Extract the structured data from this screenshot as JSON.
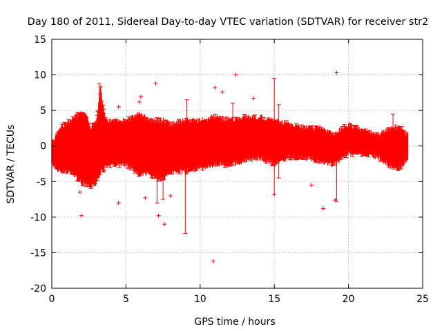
{
  "chart_data": {
    "type": "scatter",
    "title": "Day 180 of 2011, Sidereal Day-to-day VTEC variation (SDTVAR) for receiver str2",
    "xlabel": "GPS time / hours",
    "ylabel": "SDTVAR / TECUs",
    "xlim": [
      0,
      25
    ],
    "ylim": [
      -20,
      15
    ],
    "x_ticks": [
      0,
      5,
      10,
      15,
      20,
      25
    ],
    "y_ticks": [
      -20,
      -15,
      -10,
      -5,
      0,
      5,
      10,
      15
    ],
    "grid": true,
    "grid_style": "dotted",
    "marker": "+",
    "series_color": "#ff0000",
    "band": [
      {
        "x": 0.0,
        "lo": -3.0,
        "hi": 1.0
      },
      {
        "x": 0.3,
        "lo": -3.5,
        "hi": 2.0
      },
      {
        "x": 0.6,
        "lo": -4.0,
        "hi": 3.0
      },
      {
        "x": 1.0,
        "lo": -4.0,
        "hi": 3.5
      },
      {
        "x": 1.5,
        "lo": -4.5,
        "hi": 4.5
      },
      {
        "x": 2.0,
        "lo": -5.5,
        "hi": 5.0
      },
      {
        "x": 2.3,
        "lo": -6.0,
        "hi": 5.0
      },
      {
        "x": 2.6,
        "lo": -6.0,
        "hi": 3.0
      },
      {
        "x": 3.0,
        "lo": -5.5,
        "hi": 4.0
      },
      {
        "x": 3.3,
        "lo": -4.0,
        "hi": 8.5
      },
      {
        "x": 3.6,
        "lo": -3.5,
        "hi": 4.0
      },
      {
        "x": 4.0,
        "lo": -3.0,
        "hi": 4.0
      },
      {
        "x": 5.0,
        "lo": -3.0,
        "hi": 4.0
      },
      {
        "x": 6.0,
        "lo": -4.5,
        "hi": 5.0
      },
      {
        "x": 6.5,
        "lo": -4.0,
        "hi": 4.0
      },
      {
        "x": 7.0,
        "lo": -5.0,
        "hi": 4.0
      },
      {
        "x": 7.5,
        "lo": -5.0,
        "hi": 4.0
      },
      {
        "x": 8.0,
        "lo": -4.0,
        "hi": 3.5
      },
      {
        "x": 9.0,
        "lo": -4.0,
        "hi": 4.0
      },
      {
        "x": 10.0,
        "lo": -3.5,
        "hi": 4.0
      },
      {
        "x": 11.0,
        "lo": -3.0,
        "hi": 4.5
      },
      {
        "x": 12.0,
        "lo": -3.0,
        "hi": 4.0
      },
      {
        "x": 13.0,
        "lo": -2.5,
        "hi": 4.5
      },
      {
        "x": 14.0,
        "lo": -2.0,
        "hi": 4.5
      },
      {
        "x": 15.0,
        "lo": -3.0,
        "hi": 4.0
      },
      {
        "x": 16.0,
        "lo": -2.0,
        "hi": 3.5
      },
      {
        "x": 17.0,
        "lo": -2.0,
        "hi": 3.0
      },
      {
        "x": 18.0,
        "lo": -2.5,
        "hi": 3.0
      },
      {
        "x": 19.0,
        "lo": -3.0,
        "hi": 2.0
      },
      {
        "x": 20.0,
        "lo": -1.5,
        "hi": 3.5
      },
      {
        "x": 21.0,
        "lo": -1.5,
        "hi": 2.5
      },
      {
        "x": 22.0,
        "lo": -2.0,
        "hi": 2.0
      },
      {
        "x": 23.0,
        "lo": -3.5,
        "hi": 3.0
      },
      {
        "x": 23.5,
        "lo": -3.5,
        "hi": 3.0
      },
      {
        "x": 24.0,
        "lo": -2.0,
        "hi": 2.0
      }
    ],
    "spikes": [
      {
        "x": 3.2,
        "lo": 0,
        "hi": 8.8
      },
      {
        "x": 7.1,
        "lo": -8,
        "hi": 0
      },
      {
        "x": 7.5,
        "lo": -7.5,
        "hi": 0
      },
      {
        "x": 9.0,
        "lo": -12.3,
        "hi": 0
      },
      {
        "x": 9.1,
        "lo": 0,
        "hi": 6.5
      },
      {
        "x": 12.2,
        "lo": 0,
        "hi": 6.0
      },
      {
        "x": 15.0,
        "lo": -6.8,
        "hi": 9.5
      },
      {
        "x": 15.3,
        "lo": -4.5,
        "hi": 5.8
      },
      {
        "x": 19.2,
        "lo": -7.8,
        "hi": 0
      },
      {
        "x": 23.0,
        "lo": 0,
        "hi": 4.5
      }
    ],
    "outliers": [
      {
        "x": 2.0,
        "y": -9.8
      },
      {
        "x": 4.5,
        "y": -8.0
      },
      {
        "x": 4.5,
        "y": 5.5
      },
      {
        "x": 6.0,
        "y": 6.9
      },
      {
        "x": 6.3,
        "y": -7.3
      },
      {
        "x": 7.0,
        "y": 8.8
      },
      {
        "x": 7.2,
        "y": -9.8
      },
      {
        "x": 7.6,
        "y": -11.0
      },
      {
        "x": 11.0,
        "y": 8.2
      },
      {
        "x": 11.5,
        "y": 7.6
      },
      {
        "x": 10.9,
        "y": -16.2
      },
      {
        "x": 12.4,
        "y": 10.0
      },
      {
        "x": 15.0,
        "y": -6.8
      },
      {
        "x": 17.5,
        "y": -5.5
      },
      {
        "x": 18.3,
        "y": -8.8
      },
      {
        "x": 19.2,
        "y": 10.3
      },
      {
        "x": 19.1,
        "y": -7.6
      },
      {
        "x": 3.3,
        "y": 8.3
      },
      {
        "x": 5.9,
        "y": 6.2
      },
      {
        "x": 13.6,
        "y": 6.7
      },
      {
        "x": 8.0,
        "y": -7.0
      },
      {
        "x": 1.9,
        "y": -6.5
      }
    ]
  }
}
